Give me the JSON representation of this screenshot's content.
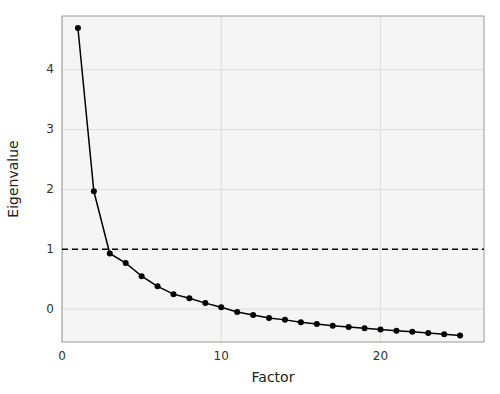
{
  "chart_data": {
    "type": "line",
    "xlabel": "Factor",
    "ylabel": "Eigenvalue",
    "x": [
      1,
      2,
      3,
      4,
      5,
      6,
      7,
      8,
      9,
      10,
      11,
      12,
      13,
      14,
      15,
      16,
      17,
      18,
      19,
      20,
      21,
      22,
      23,
      24,
      25
    ],
    "values": [
      4.7,
      1.97,
      0.93,
      0.77,
      0.55,
      0.38,
      0.25,
      0.18,
      0.1,
      0.03,
      -0.05,
      -0.1,
      -0.15,
      -0.18,
      -0.22,
      -0.25,
      -0.28,
      -0.3,
      -0.32,
      -0.34,
      -0.36,
      -0.38,
      -0.4,
      -0.42,
      -0.44
    ],
    "color": "#000000",
    "marker": "circle",
    "reference_lines": [
      {
        "value": 1.0,
        "color": "#000000",
        "line_style": "dashed"
      }
    ],
    "xlim": [
      0.0,
      26.5
    ],
    "ylim": [
      -0.55,
      4.9
    ],
    "xticks": [
      0,
      10,
      20
    ],
    "yticks": [
      0,
      1,
      2,
      3,
      4
    ],
    "grid": true
  }
}
